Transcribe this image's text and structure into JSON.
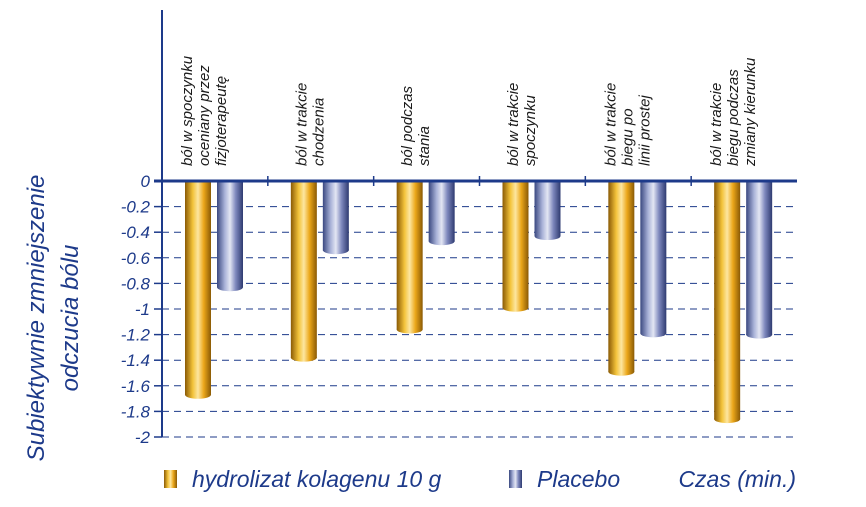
{
  "chart_data": {
    "type": "bar",
    "title": "",
    "xlabel": "",
    "ylabel": "Subiektywnie zmniejszenie odczucia bólu",
    "ylabel_lines": [
      "Subiektywnie zmniejszenie",
      "odczucia bólu"
    ],
    "time_label": "Czas (min.)",
    "ylim": [
      -2,
      0
    ],
    "yticks": [
      {
        "value": 0,
        "label": "0"
      },
      {
        "value": -0.2,
        "label": "-0.2"
      },
      {
        "value": -0.4,
        "label": "-0.4"
      },
      {
        "value": -0.6,
        "label": "-0.6"
      },
      {
        "value": -0.8,
        "label": "-0.8"
      },
      {
        "value": -1,
        "label": "-1"
      },
      {
        "value": -1.2,
        "label": "-1.2"
      },
      {
        "value": -1.4,
        "label": "-1.4"
      },
      {
        "value": -1.6,
        "label": "-1.6"
      },
      {
        "value": -1.8,
        "label": "-1.8"
      },
      {
        "value": -2,
        "label": "-2"
      }
    ],
    "categories": [
      [
        "ból w spoczynku",
        "oceniany przez",
        "fizjoterapeutę"
      ],
      [
        "ból w trakcie",
        "chodzenia"
      ],
      [
        "ból podczas",
        "stania"
      ],
      [
        "ból w trakcie",
        "spoczynku"
      ],
      [
        "ból w trakcie",
        "biegu po",
        "linii prostej"
      ],
      [
        "ból w trakcie",
        "biegu podczas",
        "zmiany kierunku"
      ]
    ],
    "series": [
      {
        "name": "hydrolizat kolagenu 10 g",
        "color": "#e8a81a",
        "values": [
          -1.67,
          -1.38,
          -1.16,
          -0.99,
          -1.49,
          -1.86
        ]
      },
      {
        "name": "Placebo",
        "color": "#6672a8",
        "values": [
          -0.83,
          -0.54,
          -0.47,
          -0.43,
          -1.19,
          -1.2
        ]
      }
    ],
    "grid": true,
    "grid_style": "dashed",
    "legend": "bottom",
    "colors": {
      "axis": "#1d3a8a",
      "text": "#1d3a8a",
      "grid": "#1d3a8a"
    }
  }
}
